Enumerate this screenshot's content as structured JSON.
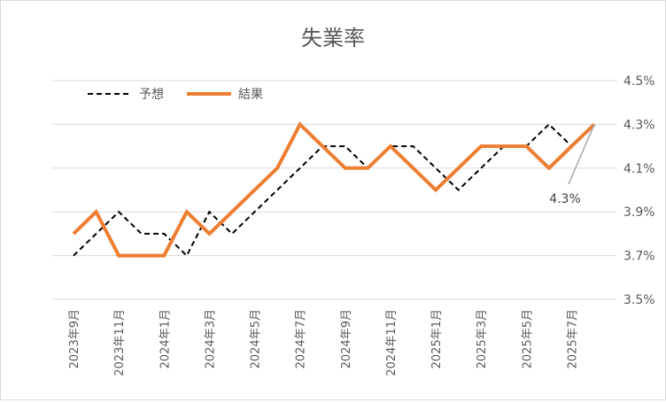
{
  "chart_data": {
    "type": "line",
    "title": "失業率",
    "ylim": [
      3.5,
      4.5
    ],
    "yticks": [
      "3.5%",
      "3.7%",
      "3.9%",
      "4.1%",
      "4.3%",
      "4.5%"
    ],
    "ytick_values": [
      3.5,
      3.7,
      3.9,
      4.1,
      4.3,
      4.5
    ],
    "y_axis_position": "right",
    "grid": true,
    "legend_position": "top-left",
    "categories": [
      "2023年9月",
      "2023年10月",
      "2023年11月",
      "2023年12月",
      "2024年1月",
      "2024年2月",
      "2024年3月",
      "2024年4月",
      "2024年5月",
      "2024年6月",
      "2024年7月",
      "2024年8月",
      "2024年9月",
      "2024年10月",
      "2024年11月",
      "2024年12月",
      "2025年1月",
      "2025年2月",
      "2025年3月",
      "2025年4月",
      "2025年5月",
      "2025年6月",
      "2025年7月",
      "2025年8月"
    ],
    "xtick_labels": [
      "2023年9月",
      "2023年11月",
      "2024年1月",
      "2024年3月",
      "2024年5月",
      "2024年7月",
      "2024年9月",
      "2024年11月",
      "2025年1月",
      "2025年3月",
      "2025年5月",
      "2025年7月"
    ],
    "series": [
      {
        "name": "予想",
        "style": "dashed",
        "color": "#000000",
        "values": [
          3.7,
          3.8,
          3.9,
          3.8,
          3.8,
          3.7,
          3.9,
          3.8,
          3.9,
          4.0,
          4.1,
          4.2,
          4.2,
          4.1,
          4.2,
          4.2,
          4.1,
          4.0,
          4.1,
          4.2,
          4.2,
          4.3,
          4.2,
          4.3
        ]
      },
      {
        "name": "結果",
        "style": "solid",
        "color": "#ED7D31",
        "values": [
          3.8,
          3.9,
          3.7,
          3.7,
          3.7,
          3.9,
          3.8,
          3.9,
          4.0,
          4.1,
          4.3,
          4.2,
          4.1,
          4.1,
          4.2,
          4.1,
          4.0,
          4.1,
          4.2,
          4.2,
          4.2,
          4.1,
          4.2,
          4.3
        ]
      }
    ],
    "annotation": {
      "text": "4.3%",
      "target_index": 23
    }
  }
}
